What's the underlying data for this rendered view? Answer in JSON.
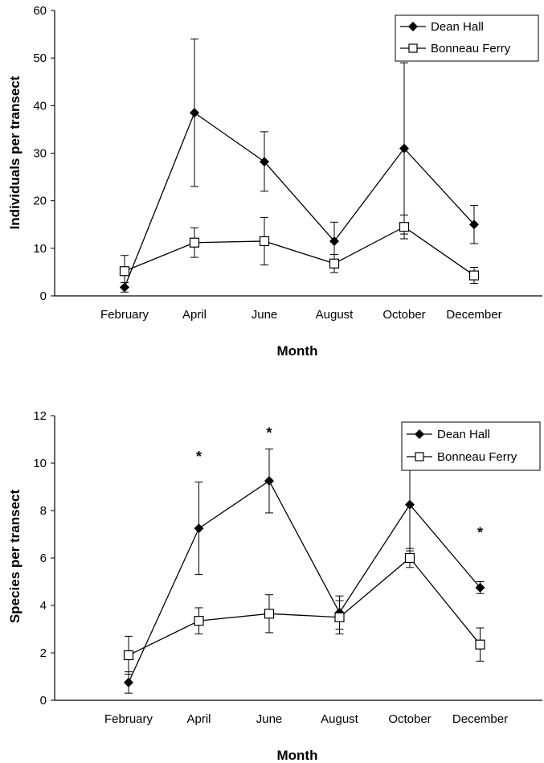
{
  "chart_data": [
    {
      "type": "line",
      "title": "",
      "xlabel": "Month",
      "ylabel": "Individuals per transect",
      "ylim": [
        0,
        60
      ],
      "yticks": [
        0,
        10,
        20,
        30,
        40,
        50,
        60
      ],
      "categories": [
        "February",
        "April",
        "June",
        "August",
        "October",
        "December"
      ],
      "legend_position": "top-right",
      "series": [
        {
          "name": "Dean Hall",
          "marker": "filled-diamond",
          "values": [
            1.8,
            38.5,
            28.2,
            11.5,
            31.0,
            15.0
          ],
          "error_upper": [
            2.8,
            54.0,
            34.5,
            15.5,
            49.0,
            19.0
          ],
          "error_lower": [
            0.8,
            23.0,
            22.0,
            7.5,
            13.0,
            11.0
          ]
        },
        {
          "name": "Bonneau Ferry",
          "marker": "open-square",
          "values": [
            5.2,
            11.2,
            11.5,
            6.8,
            14.5,
            4.3
          ],
          "error_upper": [
            8.5,
            14.3,
            16.5,
            8.7,
            17.0,
            6.0
          ],
          "error_lower": [
            2.0,
            8.1,
            6.5,
            4.9,
            12.0,
            2.6
          ]
        }
      ],
      "annotations": []
    },
    {
      "type": "line",
      "title": "",
      "xlabel": "Month",
      "ylabel": "Species per transect",
      "ylim": [
        0,
        12
      ],
      "yticks": [
        0,
        2,
        4,
        6,
        8,
        10,
        12
      ],
      "categories": [
        "February",
        "April",
        "June",
        "August",
        "October",
        "December"
      ],
      "legend_position": "top-right",
      "series": [
        {
          "name": "Dean Hall",
          "marker": "filled-diamond",
          "values": [
            0.75,
            7.25,
            9.25,
            3.7,
            8.25,
            4.75
          ],
          "error_upper": [
            1.2,
            9.2,
            10.6,
            4.4,
            10.2,
            5.0
          ],
          "error_lower": [
            0.3,
            5.3,
            7.9,
            3.0,
            6.3,
            4.5
          ]
        },
        {
          "name": "Bonneau Ferry",
          "marker": "open-square",
          "values": [
            1.9,
            3.35,
            3.65,
            3.5,
            6.0,
            2.35
          ],
          "error_upper": [
            2.7,
            3.9,
            4.45,
            4.2,
            6.4,
            3.05
          ],
          "error_lower": [
            1.1,
            2.8,
            2.85,
            2.8,
            5.6,
            1.65
          ]
        }
      ],
      "annotations": [
        {
          "category": "April",
          "text": "*",
          "y": 10.4
        },
        {
          "category": "June",
          "text": "*",
          "y": 11.4
        },
        {
          "category": "December",
          "text": "*",
          "y": 7.2
        }
      ]
    }
  ]
}
